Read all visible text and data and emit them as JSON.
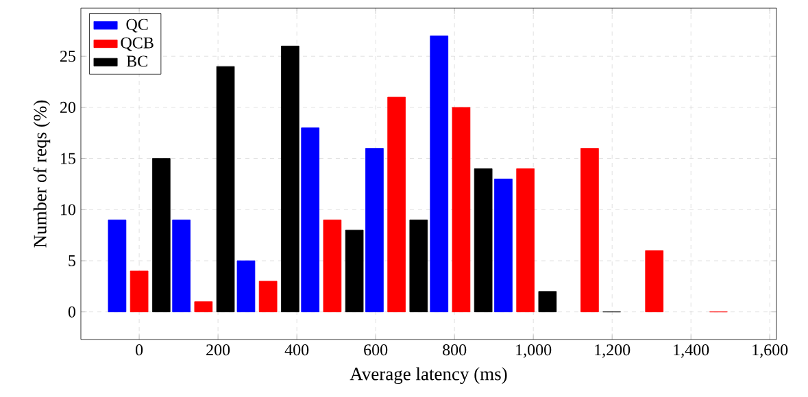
{
  "chart_data": {
    "type": "bar",
    "xlabel": "Average latency (ms)",
    "ylabel": "Number of reqs (%)",
    "x": [
      0,
      163,
      327,
      490,
      653,
      817,
      980,
      1143,
      1307,
      1470
    ],
    "series": [
      {
        "name": "QC",
        "color": "#0000ff",
        "values": [
          9,
          9,
          5,
          18,
          16,
          27,
          13,
          null,
          null,
          null
        ]
      },
      {
        "name": "QCB",
        "color": "#ff0000",
        "values": [
          4,
          1,
          3,
          9,
          21,
          20,
          14,
          16,
          6,
          0
        ]
      },
      {
        "name": "BC",
        "color": "#000000",
        "values": [
          15,
          24,
          26,
          8,
          9,
          14,
          2,
          0,
          null,
          null
        ]
      }
    ],
    "xlim": [
      -148,
      1617
    ],
    "ylim": [
      -2.7,
      29.7
    ],
    "xticks": [
      0,
      200,
      400,
      600,
      800,
      {
        "value": 1000,
        "label": "1,000"
      },
      {
        "value": 1200,
        "label": "1,200"
      },
      {
        "value": 1400,
        "label": "1,400"
      },
      {
        "value": 1600,
        "label": "1,600"
      }
    ],
    "yticks": [
      0,
      5,
      10,
      15,
      20,
      25
    ],
    "grid": true,
    "legend": "top left"
  }
}
